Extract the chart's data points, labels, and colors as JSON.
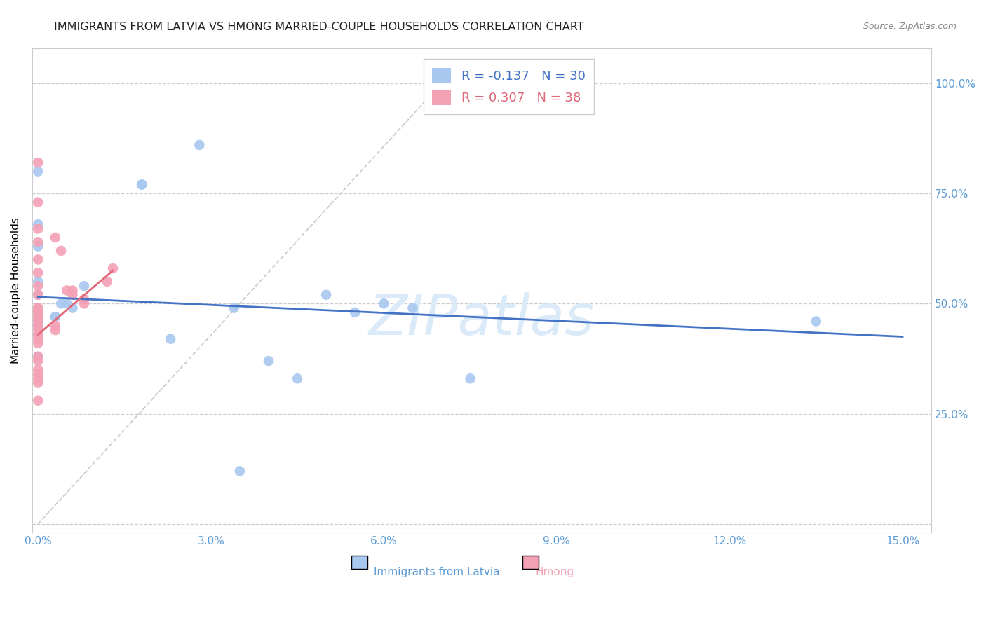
{
  "title": "IMMIGRANTS FROM LATVIA VS HMONG MARRIED-COUPLE HOUSEHOLDS CORRELATION CHART",
  "source": "Source: ZipAtlas.com",
  "ylabel": "Married-couple Households",
  "yticks": [
    0.0,
    0.25,
    0.5,
    0.75,
    1.0
  ],
  "ytick_labels": [
    "",
    "25.0%",
    "50.0%",
    "75.0%",
    "100.0%"
  ],
  "xticks": [
    0.0,
    0.03,
    0.06,
    0.09,
    0.12,
    0.15
  ],
  "xtick_labels": [
    "0.0%",
    "3.0%",
    "6.0%",
    "9.0%",
    "12.0%",
    "15.0%"
  ],
  "legend_blue_R": "-0.137",
  "legend_blue_N": "30",
  "legend_pink_R": "0.307",
  "legend_pink_N": "38",
  "blue_color": "#a8c8f0",
  "pink_color": "#f4a0b5",
  "blue_line_color": "#4472c4",
  "pink_line_color": "#e06878",
  "diagonal_line_color": "#c8c8c8",
  "grid_color": "#cccccc",
  "axis_color": "#cccccc",
  "tick_label_color": "#5b9bd5",
  "watermark_text": "ZIPatlas",
  "watermark_color": "#daeaf8",
  "blue_scatter_x": [
    0.028,
    0.0,
    0.018,
    0.018,
    0.0,
    0.0,
    0.0,
    0.008,
    0.0,
    0.005,
    0.004,
    0.006,
    0.0,
    0.003,
    0.003,
    0.0,
    0.0,
    0.0,
    0.034,
    0.05,
    0.055,
    0.023,
    0.065,
    0.06,
    0.04,
    0.135,
    0.075,
    0.045,
    0.035,
    0.0
  ],
  "blue_scatter_y": [
    0.86,
    0.8,
    0.77,
    0.77,
    0.68,
    0.63,
    0.55,
    0.54,
    0.52,
    0.5,
    0.5,
    0.49,
    0.48,
    0.47,
    0.47,
    0.46,
    0.45,
    0.43,
    0.49,
    0.52,
    0.48,
    0.42,
    0.49,
    0.5,
    0.37,
    0.46,
    0.33,
    0.33,
    0.12,
    0.38
  ],
  "pink_scatter_x": [
    0.0,
    0.0,
    0.0,
    0.003,
    0.0,
    0.004,
    0.0,
    0.0,
    0.0,
    0.005,
    0.006,
    0.006,
    0.0,
    0.008,
    0.008,
    0.0,
    0.0,
    0.0,
    0.0,
    0.012,
    0.013,
    0.0,
    0.0,
    0.0,
    0.0,
    0.003,
    0.003,
    0.0,
    0.0,
    0.0,
    0.0,
    0.0,
    0.0,
    0.0,
    0.0,
    0.0,
    0.0,
    0.0
  ],
  "pink_scatter_y": [
    0.82,
    0.73,
    0.67,
    0.65,
    0.64,
    0.62,
    0.6,
    0.57,
    0.54,
    0.53,
    0.53,
    0.52,
    0.52,
    0.51,
    0.5,
    0.49,
    0.49,
    0.48,
    0.48,
    0.55,
    0.58,
    0.47,
    0.47,
    0.46,
    0.45,
    0.45,
    0.44,
    0.44,
    0.43,
    0.42,
    0.41,
    0.38,
    0.37,
    0.35,
    0.34,
    0.33,
    0.32,
    0.28
  ],
  "blue_line_x0": 0.0,
  "blue_line_x1": 0.15,
  "blue_line_y0": 0.515,
  "blue_line_y1": 0.425,
  "pink_line_x0": 0.0,
  "pink_line_x1": 0.013,
  "pink_line_y0": 0.43,
  "pink_line_y1": 0.575,
  "diag_line_x": [
    0.0,
    0.07
  ],
  "diag_line_y": [
    0.0,
    1.0
  ],
  "xlim": [
    -0.001,
    0.155
  ],
  "ylim": [
    -0.02,
    1.08
  ]
}
